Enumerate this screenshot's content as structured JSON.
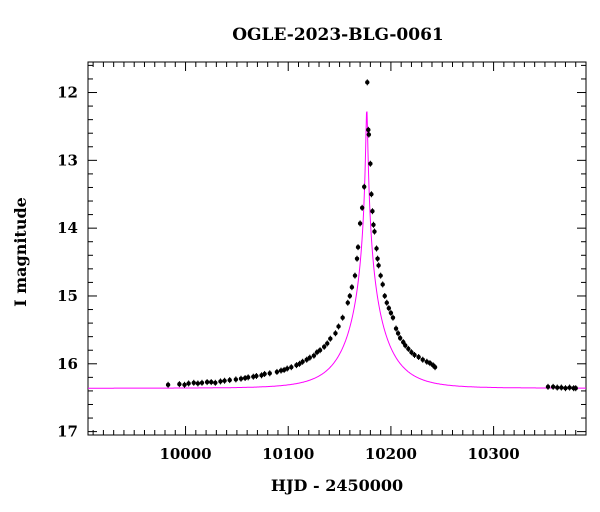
{
  "chart_data": {
    "type": "scatter",
    "title": "OGLE-2023-BLG-0061",
    "xlabel": "HJD - 2450000",
    "ylabel": "I magnitude",
    "xlim": [
      9905,
      10390
    ],
    "ylim": [
      17.05,
      11.55
    ],
    "y_inverted": true,
    "x_ticks": [
      10000,
      10100,
      10200,
      10300
    ],
    "x_tick_labels": [
      "10000",
      "10100",
      "10200",
      "10300"
    ],
    "y_ticks": [
      12,
      13,
      14,
      15,
      16,
      17
    ],
    "y_tick_labels": [
      "12",
      "13",
      "14",
      "15",
      "16",
      "17"
    ],
    "grid": false,
    "series": [
      {
        "kind": "points",
        "color": "#000000",
        "points": [
          [
            9983,
            16.31
          ],
          [
            9994,
            16.3
          ],
          [
            9999,
            16.31
          ],
          [
            10003,
            16.29
          ],
          [
            10008,
            16.28
          ],
          [
            10012,
            16.29
          ],
          [
            10016,
            16.28
          ],
          [
            10021,
            16.27
          ],
          [
            10025,
            16.27
          ],
          [
            10029,
            16.28
          ],
          [
            10034,
            16.26
          ],
          [
            10038,
            16.25
          ],
          [
            10043,
            16.24
          ],
          [
            10049,
            16.23
          ],
          [
            10054,
            16.22
          ],
          [
            10058,
            16.21
          ],
          [
            10061,
            16.2
          ],
          [
            10066,
            16.19
          ],
          [
            10069,
            16.18
          ],
          [
            10074,
            16.17
          ],
          [
            10077,
            16.15
          ],
          [
            10082,
            16.14
          ],
          [
            10089,
            16.12
          ],
          [
            10093,
            16.1
          ],
          [
            10096,
            16.09
          ],
          [
            10099,
            16.07
          ],
          [
            10103,
            16.05
          ],
          [
            10108,
            16.02
          ],
          [
            10111,
            16.0
          ],
          [
            10114,
            15.97
          ],
          [
            10118,
            15.94
          ],
          [
            10121,
            15.91
          ],
          [
            10125,
            15.88
          ],
          [
            10128,
            15.83
          ],
          [
            10131,
            15.8
          ],
          [
            10135,
            15.75
          ],
          [
            10138,
            15.7
          ],
          [
            10141,
            15.63
          ],
          [
            10146,
            15.55
          ],
          [
            10149,
            15.45
          ],
          [
            10153,
            15.32
          ],
          [
            10158,
            15.1
          ],
          [
            10160,
            15.0
          ],
          [
            10162,
            14.87
          ],
          [
            10165,
            14.7
          ],
          [
            10167,
            14.45
          ],
          [
            10168,
            14.28
          ],
          [
            10170,
            13.93
          ],
          [
            10172,
            13.7
          ],
          [
            10174,
            13.39
          ],
          [
            10177,
            11.85
          ],
          [
            10178,
            12.55
          ],
          [
            10178.5,
            12.62
          ],
          [
            10180,
            13.05
          ],
          [
            10181,
            13.5
          ],
          [
            10182,
            13.75
          ],
          [
            10183,
            13.95
          ],
          [
            10184,
            14.05
          ],
          [
            10186,
            14.3
          ],
          [
            10187,
            14.45
          ],
          [
            10188,
            14.55
          ],
          [
            10190,
            14.7
          ],
          [
            10192,
            14.83
          ],
          [
            10194,
            15.0
          ],
          [
            10196,
            15.1
          ],
          [
            10198,
            15.18
          ],
          [
            10200,
            15.25
          ],
          [
            10202,
            15.32
          ],
          [
            10205,
            15.48
          ],
          [
            10207,
            15.55
          ],
          [
            10209,
            15.62
          ],
          [
            10212,
            15.68
          ],
          [
            10214,
            15.73
          ],
          [
            10217,
            15.78
          ],
          [
            10220,
            15.83
          ],
          [
            10223,
            15.87
          ],
          [
            10227,
            15.9
          ],
          [
            10231,
            15.94
          ],
          [
            10235,
            15.97
          ],
          [
            10238,
            15.99
          ],
          [
            10241,
            16.02
          ],
          [
            10243,
            16.05
          ],
          [
            10353,
            16.34
          ],
          [
            10358,
            16.34
          ],
          [
            10362,
            16.35
          ],
          [
            10366,
            16.35
          ],
          [
            10370,
            16.36
          ],
          [
            10374,
            16.35
          ],
          [
            10378,
            16.36
          ],
          [
            10380,
            16.36
          ]
        ]
      },
      {
        "kind": "model-curve",
        "color": "#ff00ff",
        "t0": 10176.5,
        "tE": 35,
        "u0": 0.0225,
        "baseline": 16.36
      }
    ]
  }
}
